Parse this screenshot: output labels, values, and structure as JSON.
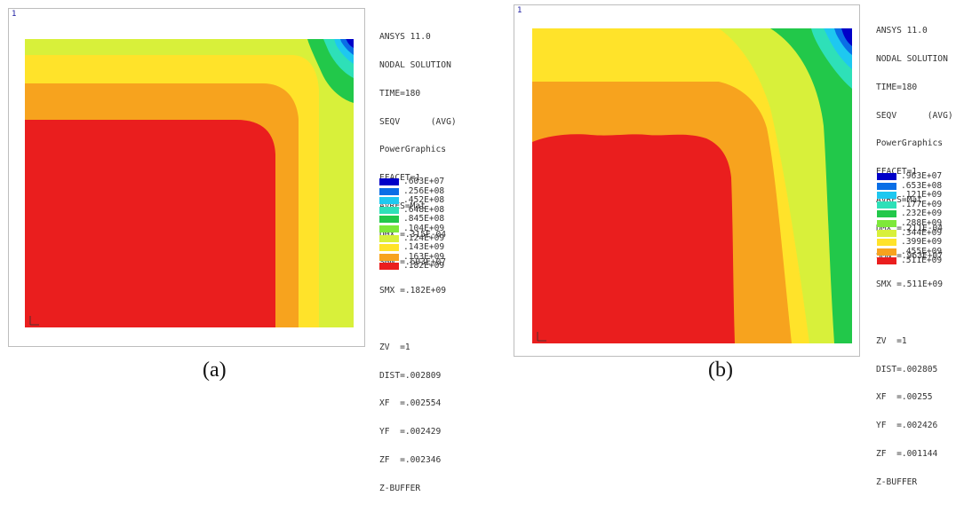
{
  "panels": [
    {
      "caption": "(a)",
      "viewport_number": "1",
      "info_lines": [
        "ANSYS 11.0",
        "NODAL SOLUTION",
        "TIME=180",
        "SEQV      (AVG)",
        "PowerGraphics",
        "EFACET=1",
        "AVRES=Mat",
        "DMX =.315E-04",
        "SMN =.603E+07",
        "SMX =.182E+09",
        "",
        "ZV  =1",
        "DIST=.002809",
        "XF  =.002554",
        "YF  =.002429",
        "ZF  =.002346",
        "Z-BUFFER"
      ],
      "legend": [
        {
          "label": ".603E+07",
          "color": "#0000c8"
        },
        {
          "label": ".256E+08",
          "color": "#0a6ee6"
        },
        {
          "label": ".452E+08",
          "color": "#1ec8f0"
        },
        {
          "label": ".648E+08",
          "color": "#2ee0b8"
        },
        {
          "label": ".845E+08",
          "color": "#22c84a"
        },
        {
          "label": ".104E+09",
          "color": "#7ee83a"
        },
        {
          "label": ".124E+09",
          "color": "#d8f03a"
        },
        {
          "label": ".143E+09",
          "color": "#ffe32a"
        },
        {
          "label": ".163E+09",
          "color": "#f7a31e"
        },
        {
          "label": ".182E+09",
          "color": "#ea1e1e"
        }
      ]
    },
    {
      "caption": "(b)",
      "viewport_number": "1",
      "info_lines": [
        "ANSYS 11.0",
        "NODAL SOLUTION",
        "TIME=180",
        "SEQV      (AVG)",
        "PowerGraphics",
        "EFACET=1",
        "AVRES=Mat",
        "DMX =.211E-04",
        "SMN =.963E+07",
        "SMX =.511E+09",
        "",
        "ZV  =1",
        "DIST=.002805",
        "XF  =.00255",
        "YF  =.002426",
        "ZF  =.001144",
        "Z-BUFFER"
      ],
      "legend": [
        {
          "label": ".963E+07",
          "color": "#0000c8"
        },
        {
          "label": ".653E+08",
          "color": "#0a6ee6"
        },
        {
          "label": ".121E+09",
          "color": "#1ec8f0"
        },
        {
          "label": ".177E+09",
          "color": "#2ee0b8"
        },
        {
          "label": ".232E+09",
          "color": "#22c84a"
        },
        {
          "label": ".288E+09",
          "color": "#7ee83a"
        },
        {
          "label": ".344E+09",
          "color": "#d8f03a"
        },
        {
          "label": ".399E+09",
          "color": "#ffe32a"
        },
        {
          "label": ".455E+09",
          "color": "#f7a31e"
        },
        {
          "label": ".511E+09",
          "color": "#ea1e1e"
        }
      ]
    }
  ]
}
